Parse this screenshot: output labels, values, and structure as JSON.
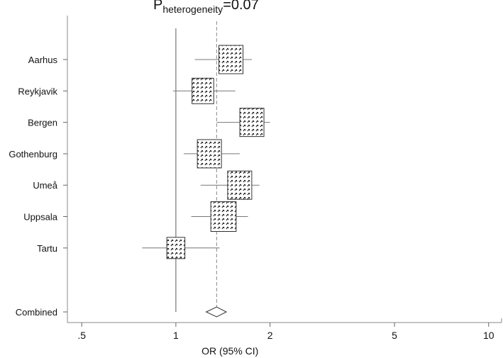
{
  "chart_data": {
    "type": "forest",
    "title_main": "P",
    "title_sub": "heterogeneity",
    "title_value": "=0.07",
    "xlabel": "OR (95% CI)",
    "x_scale": "log",
    "xlim": [
      0.45,
      11
    ],
    "x_ticks": [
      0.5,
      1,
      2,
      5,
      10
    ],
    "x_tick_labels": [
      ".5",
      "1",
      "2",
      "5",
      "10"
    ],
    "reference_line": 1,
    "combined_line": 1.35,
    "studies": [
      {
        "label": "Aarhus",
        "or": 1.5,
        "lo": 1.15,
        "hi": 1.75
      },
      {
        "label": "Reykjavik",
        "or": 1.22,
        "lo": 0.98,
        "hi": 1.55
      },
      {
        "label": "Bergen",
        "or": 1.75,
        "lo": 1.35,
        "hi": 2.0
      },
      {
        "label": "Gothenburg",
        "or": 1.28,
        "lo": 1.06,
        "hi": 1.6
      },
      {
        "label": "Umeå",
        "or": 1.6,
        "lo": 1.2,
        "hi": 1.85
      },
      {
        "label": "Uppsala",
        "or": 1.42,
        "lo": 1.12,
        "hi": 1.7
      },
      {
        "label": "Tartu",
        "or": 1.0,
        "lo": 0.78,
        "hi": 1.38
      }
    ],
    "combined": {
      "label": "Combined",
      "or": 1.35,
      "lo": 1.25,
      "hi": 1.45
    },
    "box_sizes": [
      1.0,
      0.9,
      1.0,
      1.0,
      1.0,
      1.05,
      0.75
    ],
    "grid": false
  }
}
